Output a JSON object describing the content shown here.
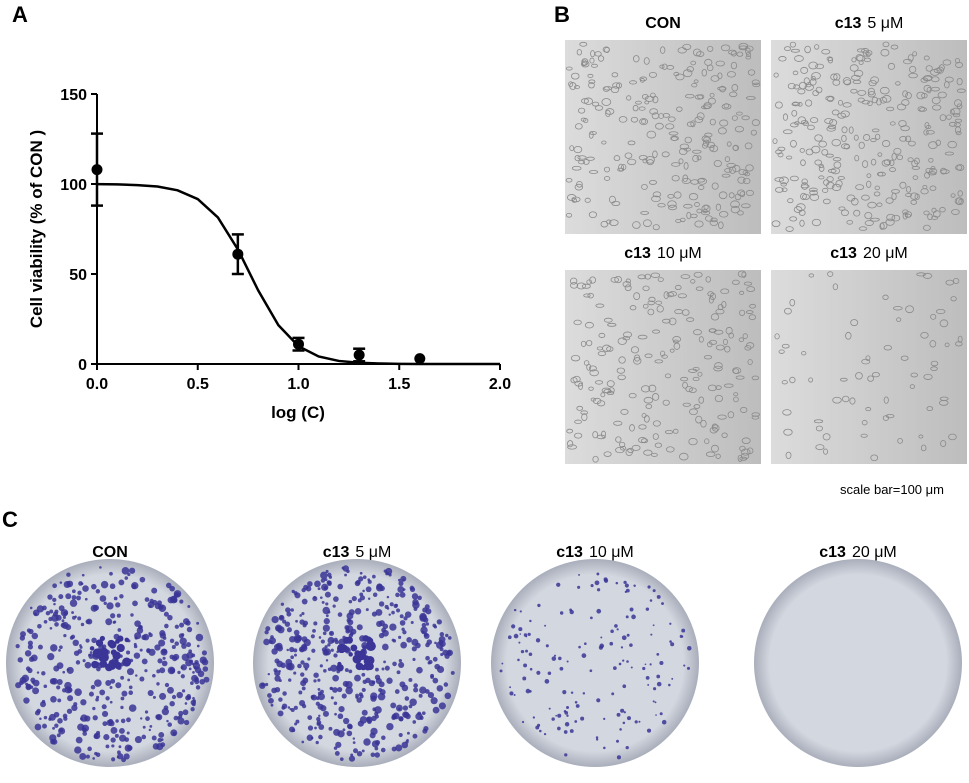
{
  "chart_data": {
    "type": "line",
    "panel_label": "A",
    "x_label": "log (C)",
    "y_label": "Cell viability (% of CON )",
    "xlim": [
      0,
      2.0
    ],
    "ylim": [
      0,
      150
    ],
    "xticks": [
      {
        "value": 0,
        "label": "0.0"
      },
      {
        "value": 0.5,
        "label": "0.5"
      },
      {
        "value": 1.0,
        "label": "1.0"
      },
      {
        "value": 1.5,
        "label": "1.5"
      },
      {
        "value": 2.0,
        "label": "2.0"
      }
    ],
    "yticks": [
      0,
      50,
      100,
      150
    ],
    "series": [
      {
        "kind": "points",
        "color": "#000000",
        "x": [
          0,
          0.699,
          1.0,
          1.301,
          1.602
        ],
        "values": [
          108,
          61,
          11,
          5,
          3
        ],
        "errors": [
          20,
          11,
          3.5,
          3.5,
          0
        ]
      },
      {
        "kind": "curve",
        "color": "#000000",
        "x": [
          0,
          0.1,
          0.2,
          0.3,
          0.4,
          0.5,
          0.6,
          0.7,
          0.8,
          0.9,
          1.0,
          1.1,
          1.2,
          1.3,
          1.4,
          1.5,
          1.6,
          1.7,
          1.8,
          1.9,
          2.0
        ],
        "values": [
          99.9,
          99.8,
          99.4,
          98.6,
          96.5,
          91.6,
          81.4,
          63.5,
          40.9,
          21.6,
          9.9,
          4.2,
          1.7,
          0.7,
          0.3,
          0.1,
          0,
          0,
          0,
          0,
          0
        ]
      }
    ]
  },
  "panel_b": {
    "label": "B",
    "images": [
      {
        "name": "CON"
      },
      {
        "compound": "c13",
        "dose": "5 μM"
      },
      {
        "compound": "c13",
        "dose": "10 μM"
      },
      {
        "compound": "c13",
        "dose": "20 μM"
      }
    ],
    "scale_note": "scale bar=100 μm"
  },
  "panel_c": {
    "label": "C",
    "images": [
      {
        "name": "CON"
      },
      {
        "compound": "c13",
        "dose": "5 μM"
      },
      {
        "compound": "c13",
        "dose": "10 μM"
      },
      {
        "compound": "c13",
        "dose": "20 μM"
      }
    ]
  }
}
